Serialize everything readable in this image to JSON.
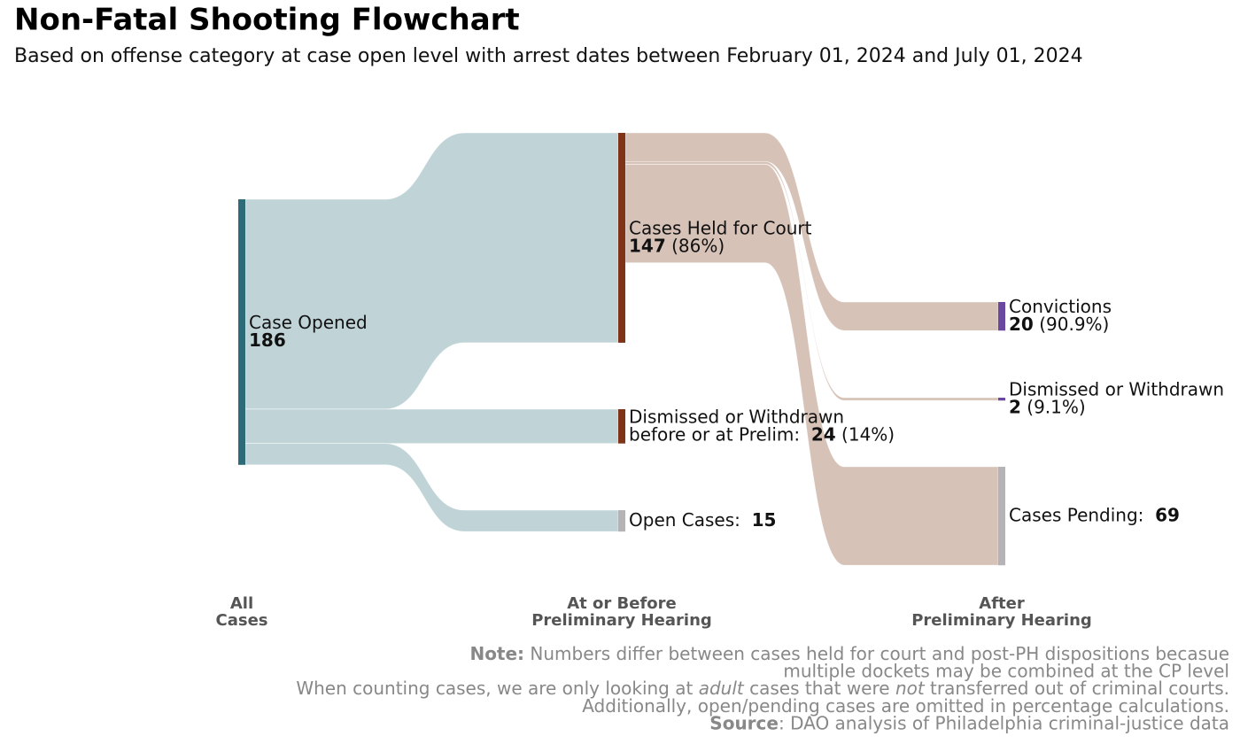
{
  "chart_data": {
    "type": "sankey",
    "title": "Non-Fatal Shooting Flowchart",
    "subtitle": "Based on offense category at case open level with arrest dates between February 01, 2024 and July 01, 2024",
    "stages": [
      [
        "All",
        "Cases"
      ],
      [
        "At or Before",
        "Preliminary Hearing"
      ],
      [
        "After",
        "Preliminary Hearing"
      ]
    ],
    "nodes": [
      {
        "name": [
          "Case Opened"
        ],
        "value": 186,
        "stage": 0,
        "color": "#2e6b78"
      },
      {
        "name": [
          "Cases Held for Court"
        ],
        "value": 147,
        "percent": 86,
        "percent_label": "(86%)",
        "stage": 1,
        "color": "#7f3418"
      },
      {
        "name": [
          "Dismissed or Withdrawn",
          "before or at Prelim:"
        ],
        "value": 24,
        "percent": 14,
        "percent_label": "(14%)",
        "stage": 1,
        "color": "#7f3418"
      },
      {
        "name": [
          "Open Cases:"
        ],
        "value": 15,
        "stage": 1,
        "color": "#b5b3b5"
      },
      {
        "name": [
          "Convictions"
        ],
        "value": 20,
        "percent": 90.9,
        "percent_label": "(90.9%)",
        "stage": 2,
        "color": "#6a48a0"
      },
      {
        "name": [
          "Dismissed or Withdrawn"
        ],
        "value": 2,
        "percent": 9.1,
        "percent_label": "(9.1%)",
        "stage": 2,
        "color": "#6a48a0"
      },
      {
        "name": [
          "Cases Pending:"
        ],
        "value": 69,
        "stage": 2,
        "color": "#b5b3b5"
      }
    ],
    "links": [
      {
        "source": 0,
        "target": 1,
        "value": 147,
        "color": "#c0d4d8"
      },
      {
        "source": 0,
        "target": 2,
        "value": 24,
        "color": "#c0d4d8"
      },
      {
        "source": 0,
        "target": 3,
        "value": 15,
        "color": "#c0d4d8"
      },
      {
        "source": 1,
        "target": 4,
        "value": 20,
        "color": "#d7c2b8"
      },
      {
        "source": 1,
        "target": 5,
        "value": 2,
        "color": "#d7c2b8"
      },
      {
        "source": 1,
        "target": 6,
        "value": 69,
        "color": "#d7c2b8"
      }
    ],
    "notes": [
      [
        {
          "text": "Note:",
          "style": "bold"
        },
        {
          "text": " Numbers differ between cases held for court and post-PH dispositions becasue"
        }
      ],
      [
        {
          "text": "multiple dockets may be combined at the CP level"
        }
      ],
      [
        {
          "text": "When counting cases, we are only looking at "
        },
        {
          "text": "adult",
          "style": "italic"
        },
        {
          "text": " cases that were "
        },
        {
          "text": "not",
          "style": "italic"
        },
        {
          "text": " transferred out of criminal courts."
        }
      ],
      [
        {
          "text": "Additionally, open/pending cases are omitted in percentage calculations."
        }
      ],
      [
        {
          "text": "Source",
          "style": "bold"
        },
        {
          "text": ": DAO analysis of Philadelphia criminal-justice data"
        }
      ]
    ]
  }
}
